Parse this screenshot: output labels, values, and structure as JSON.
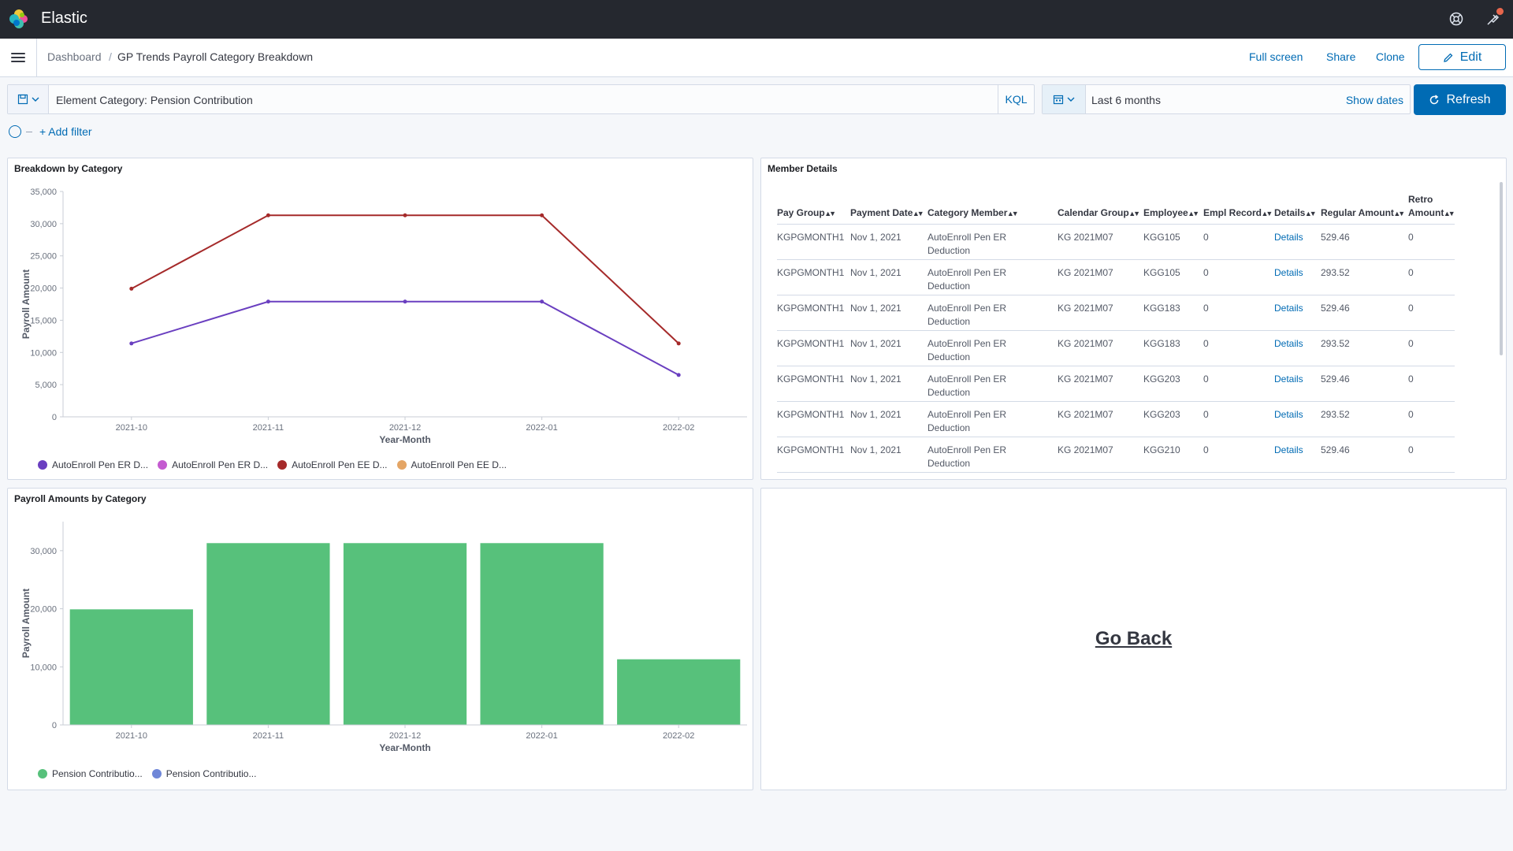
{
  "header": {
    "brand": "Elastic",
    "icons": [
      "help-icon",
      "newsfeed-icon"
    ]
  },
  "breadcrumbs": {
    "root": "Dashboard",
    "current": "GP Trends Payroll Category Breakdown"
  },
  "top_nav": {
    "full_screen": "Full screen",
    "share": "Share",
    "clone": "Clone",
    "edit": "Edit"
  },
  "query": {
    "text": "Element Category: Pension Contribution",
    "language": "KQL"
  },
  "time": {
    "range": "Last 6 months",
    "show_dates": "Show dates",
    "refresh": "Refresh"
  },
  "filters": {
    "add_filter": "+ Add filter"
  },
  "panels": {
    "line": {
      "title": "Breakdown by Category"
    },
    "table": {
      "title": "Member Details"
    },
    "bar": {
      "title": "Payroll Amounts by Category"
    },
    "go_back": {
      "label": "Go Back"
    }
  },
  "member_table": {
    "columns": [
      "Pay Group",
      "Payment Date",
      "Category Member",
      "Calendar Group",
      "Employee",
      "Empl Record",
      "Details",
      "Regular Amount",
      "Retro Amount"
    ],
    "rows": [
      [
        "KGPGMONTH1",
        "Nov 1, 2021",
        "AutoEnroll Pen ER Deduction",
        "KG 2021M07",
        "KGG105",
        "0",
        "Details",
        "529.46",
        "0"
      ],
      [
        "KGPGMONTH1",
        "Nov 1, 2021",
        "AutoEnroll Pen ER Deduction",
        "KG 2021M07",
        "KGG105",
        "0",
        "Details",
        "293.52",
        "0"
      ],
      [
        "KGPGMONTH1",
        "Nov 1, 2021",
        "AutoEnroll Pen ER Deduction",
        "KG 2021M07",
        "KGG183",
        "0",
        "Details",
        "529.46",
        "0"
      ],
      [
        "KGPGMONTH1",
        "Nov 1, 2021",
        "AutoEnroll Pen ER Deduction",
        "KG 2021M07",
        "KGG183",
        "0",
        "Details",
        "293.52",
        "0"
      ],
      [
        "KGPGMONTH1",
        "Nov 1, 2021",
        "AutoEnroll Pen ER Deduction",
        "KG 2021M07",
        "KGG203",
        "0",
        "Details",
        "529.46",
        "0"
      ],
      [
        "KGPGMONTH1",
        "Nov 1, 2021",
        "AutoEnroll Pen ER Deduction",
        "KG 2021M07",
        "KGG203",
        "0",
        "Details",
        "293.52",
        "0"
      ],
      [
        "KGPGMONTH1",
        "Nov 1, 2021",
        "AutoEnroll Pen ER Deduction",
        "KG 2021M07",
        "KGG210",
        "0",
        "Details",
        "529.46",
        "0"
      ]
    ]
  },
  "colors": {
    "header_bg": "#25282f",
    "accent": "#006bb4",
    "bar_green": "#54b399"
  },
  "chart_data": [
    {
      "type": "line",
      "title": "Breakdown by Category",
      "xlabel": "Year-Month",
      "ylabel": "Payroll Amount",
      "categories": [
        "2021-10",
        "2021-11",
        "2021-12",
        "2022-01",
        "2022-02"
      ],
      "yticks": [
        "0",
        "5,000",
        "10,000",
        "15,000",
        "20,000",
        "25,000",
        "30,000",
        "35,000"
      ],
      "ylim": [
        0,
        35000
      ],
      "series": [
        {
          "name": "AutoEnroll Pen EE D...",
          "color": "#a52a2a",
          "values": [
            19900,
            31300,
            31300,
            31300,
            11400
          ]
        },
        {
          "name": "AutoEnroll Pen ER D...",
          "color": "#6a3fc0",
          "values": [
            11400,
            17900,
            17900,
            17900,
            6500
          ]
        }
      ],
      "legend": [
        {
          "name": "AutoEnroll Pen ER D...",
          "color": "#6a3fc0"
        },
        {
          "name": "AutoEnroll Pen ER D...",
          "color": "#c45bd0"
        },
        {
          "name": "AutoEnroll Pen EE D...",
          "color": "#a52a2a"
        },
        {
          "name": "AutoEnroll Pen EE D...",
          "color": "#e4a565"
        }
      ],
      "legend_position": "bottom-left",
      "grid": false
    },
    {
      "type": "bar",
      "title": "Payroll Amounts by Category",
      "xlabel": "Year-Month",
      "ylabel": "Payroll Amount",
      "categories": [
        "2021-10",
        "2021-11",
        "2021-12",
        "2022-01",
        "2022-02"
      ],
      "yticks": [
        "0",
        "10,000",
        "20,000",
        "30,000"
      ],
      "ylim": [
        0,
        35000
      ],
      "values": [
        19900,
        31300,
        31300,
        31300,
        11300
      ],
      "color": "#57c17b",
      "legend": [
        {
          "name": "Pension Contributio...",
          "color": "#57c17b"
        },
        {
          "name": "Pension Contributio...",
          "color": "#6f87d8"
        }
      ],
      "legend_position": "bottom-left",
      "grid": false
    }
  ]
}
